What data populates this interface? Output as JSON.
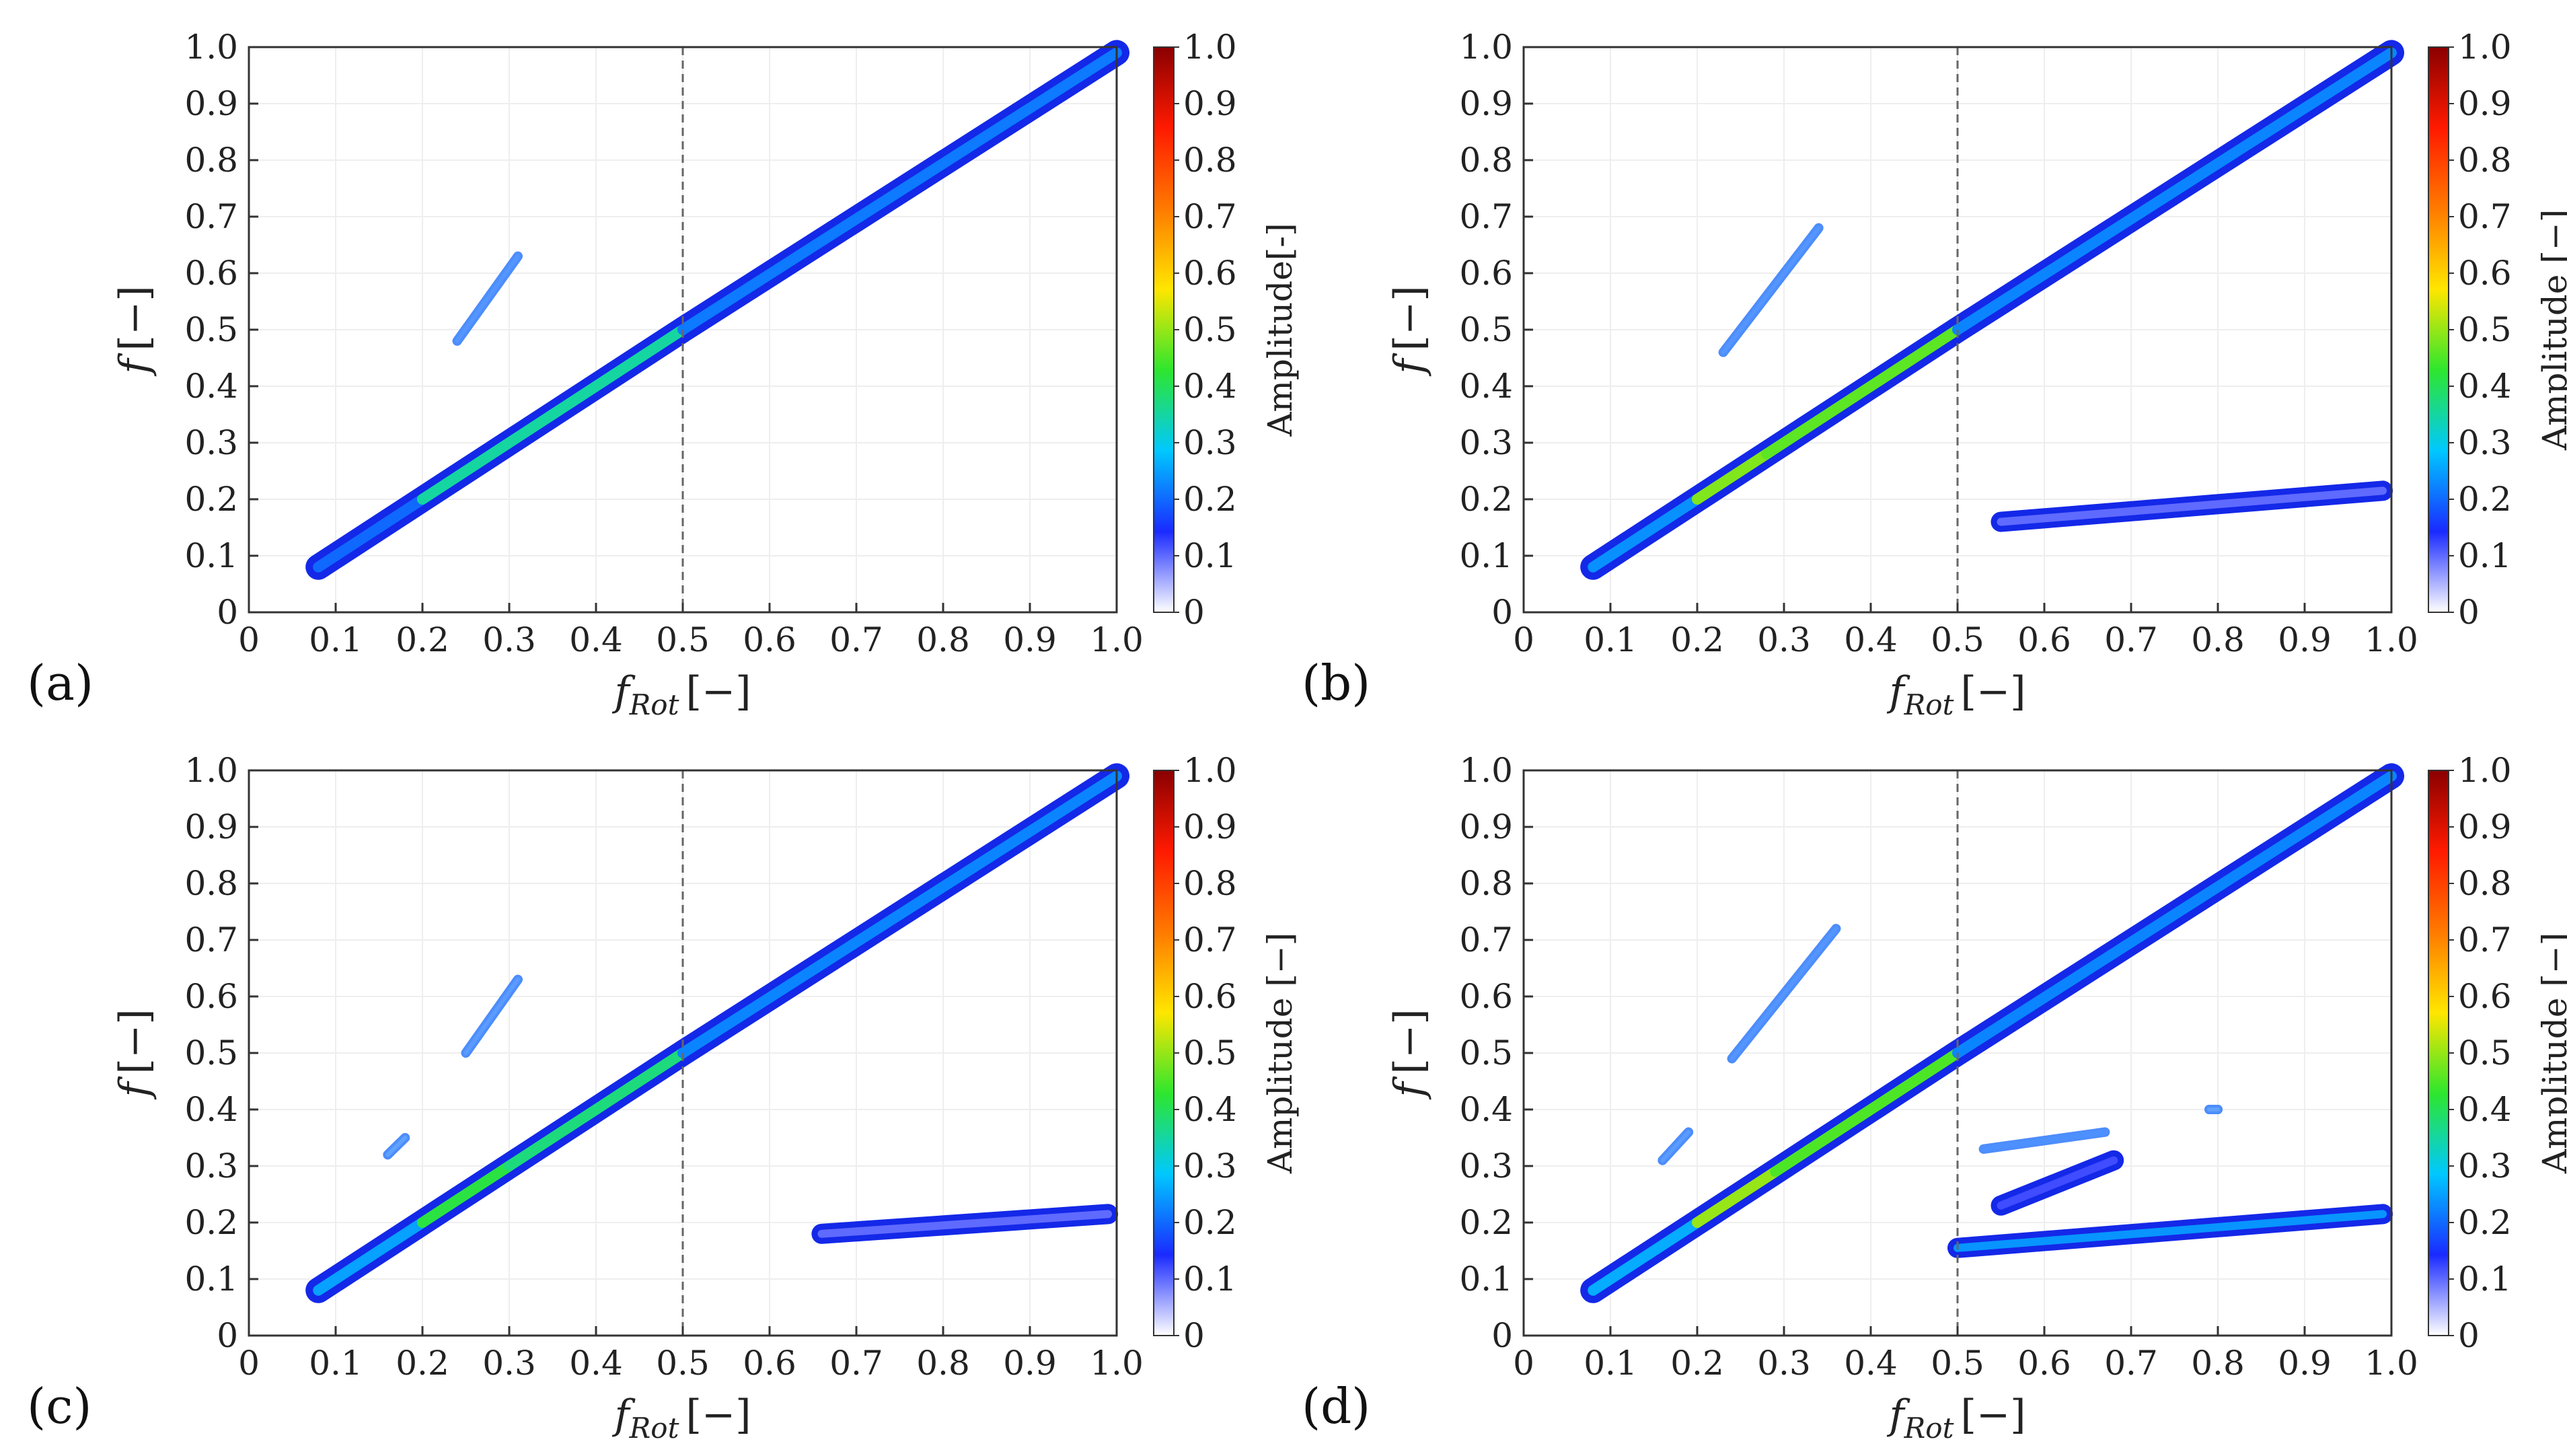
{
  "figure": {
    "colorscale": {
      "stops": [
        "#ffffff",
        "#1a2aff",
        "#00c8ff",
        "#2ee62e",
        "#ffe600",
        "#ff7a00",
        "#ff1a00",
        "#8a0000"
      ]
    },
    "vline_color": "#666666"
  },
  "chart_data": [
    {
      "type": "heatmap",
      "panel_label": "(a)",
      "xlabel_main": "f",
      "xlabel_sub": "Rot",
      "xlabel_unit": "[−]",
      "ylabel_main": "f",
      "ylabel_unit": "[−]",
      "xlim": [
        0,
        1.0
      ],
      "ylim": [
        0,
        1.0
      ],
      "xticks": [
        "0",
        "0.1",
        "0.2",
        "0.3",
        "0.4",
        "0.5",
        "0.6",
        "0.7",
        "0.8",
        "0.9",
        "1.0"
      ],
      "yticks": [
        "0",
        "0.1",
        "0.2",
        "0.3",
        "0.4",
        "0.5",
        "0.6",
        "0.7",
        "0.8",
        "0.9",
        "1.0"
      ],
      "vline_x": 0.5,
      "colorbar": {
        "label": "Amplitude[-]",
        "ticks": [
          "0",
          "0.1",
          "0.2",
          "0.3",
          "0.4",
          "0.5",
          "0.6",
          "0.7",
          "0.8",
          "0.9",
          "1.0"
        ],
        "range": [
          0,
          1.0
        ]
      },
      "bands": [
        {
          "name": "1x harmonic",
          "x": [
            0.08,
            0.2,
            0.35,
            0.5,
            1.0
          ],
          "y": [
            0.08,
            0.2,
            0.35,
            0.5,
            0.99
          ],
          "amp": [
            0.12,
            0.28,
            0.42,
            0.28,
            0.15
          ]
        },
        {
          "name": "sidebranch",
          "x": [
            0.24,
            0.31
          ],
          "y": [
            0.48,
            0.63
          ],
          "amp": [
            0.12,
            0.12
          ]
        }
      ]
    },
    {
      "type": "heatmap",
      "panel_label": "(b)",
      "xlabel_main": "f",
      "xlabel_sub": "Rot",
      "xlabel_unit": "[−]",
      "ylabel_main": "f",
      "ylabel_unit": "[−]",
      "xlim": [
        0,
        1.0
      ],
      "ylim": [
        0,
        1.0
      ],
      "xticks": [
        "0",
        "0.1",
        "0.2",
        "0.3",
        "0.4",
        "0.5",
        "0.6",
        "0.7",
        "0.8",
        "0.9",
        "1.0"
      ],
      "yticks": [
        "0",
        "0.1",
        "0.2",
        "0.3",
        "0.4",
        "0.5",
        "0.6",
        "0.7",
        "0.8",
        "0.9",
        "1.0"
      ],
      "vline_x": 0.5,
      "colorbar": {
        "label": "Amplitude [−]",
        "ticks": [
          "0",
          "0.1",
          "0.2",
          "0.3",
          "0.4",
          "0.5",
          "0.6",
          "0.7",
          "0.8",
          "0.9",
          "1.0"
        ],
        "range": [
          0,
          1.0
        ]
      },
      "bands": [
        {
          "name": "1x harmonic",
          "x": [
            0.08,
            0.2,
            0.28,
            0.5,
            1.0
          ],
          "y": [
            0.08,
            0.2,
            0.28,
            0.5,
            0.99
          ],
          "amp": [
            0.12,
            0.35,
            0.62,
            0.3,
            0.15
          ]
        },
        {
          "name": "sidebranch",
          "x": [
            0.23,
            0.34
          ],
          "y": [
            0.46,
            0.68
          ],
          "amp": [
            0.12,
            0.12
          ]
        },
        {
          "name": "low branch",
          "x": [
            0.55,
            0.99
          ],
          "y": [
            0.16,
            0.215
          ],
          "amp": [
            0.1,
            0.1
          ]
        }
      ]
    },
    {
      "type": "heatmap",
      "panel_label": "(c)",
      "xlabel_main": "f",
      "xlabel_sub": "Rot",
      "xlabel_unit": "[−]",
      "ylabel_main": "f",
      "ylabel_unit": "[−]",
      "xlim": [
        0,
        1.0
      ],
      "ylim": [
        0,
        1.0
      ],
      "xticks": [
        "0",
        "0.1",
        "0.2",
        "0.3",
        "0.4",
        "0.5",
        "0.6",
        "0.7",
        "0.8",
        "0.9",
        "1.0"
      ],
      "yticks": [
        "0",
        "0.1",
        "0.2",
        "0.3",
        "0.4",
        "0.5",
        "0.6",
        "0.7",
        "0.8",
        "0.9",
        "1.0"
      ],
      "vline_x": 0.5,
      "colorbar": {
        "label": "Amplitude [−]",
        "ticks": [
          "0",
          "0.1",
          "0.2",
          "0.3",
          "0.4",
          "0.5",
          "0.6",
          "0.7",
          "0.8",
          "0.9",
          "1.0"
        ],
        "range": [
          0,
          1.0
        ]
      },
      "bands": [
        {
          "name": "1x harmonic",
          "x": [
            0.08,
            0.2,
            0.3,
            0.5,
            1.0
          ],
          "y": [
            0.08,
            0.2,
            0.3,
            0.5,
            0.99
          ],
          "amp": [
            0.12,
            0.38,
            0.45,
            0.3,
            0.15
          ]
        },
        {
          "name": "sidebranch",
          "x": [
            0.25,
            0.31
          ],
          "y": [
            0.5,
            0.63
          ],
          "amp": [
            0.1,
            0.1
          ]
        },
        {
          "name": "small streak",
          "x": [
            0.16,
            0.18
          ],
          "y": [
            0.32,
            0.35
          ],
          "amp": [
            0.08,
            0.08
          ]
        },
        {
          "name": "low branch",
          "x": [
            0.66,
            0.99
          ],
          "y": [
            0.18,
            0.215
          ],
          "amp": [
            0.1,
            0.1
          ]
        }
      ]
    },
    {
      "type": "heatmap",
      "panel_label": "(d)",
      "xlabel_main": "f",
      "xlabel_sub": "Rot",
      "xlabel_unit": "[−]",
      "ylabel_main": "f",
      "ylabel_unit": "[−]",
      "xlim": [
        0,
        1.0
      ],
      "ylim": [
        0,
        1.0
      ],
      "xticks": [
        "0",
        "0.1",
        "0.2",
        "0.3",
        "0.4",
        "0.5",
        "0.6",
        "0.7",
        "0.8",
        "0.9",
        "1.0"
      ],
      "yticks": [
        "0",
        "0.1",
        "0.2",
        "0.3",
        "0.4",
        "0.5",
        "0.6",
        "0.7",
        "0.8",
        "0.9",
        "1.0"
      ],
      "vline_x": 0.5,
      "colorbar": {
        "label": "Amplitude [−]",
        "ticks": [
          "0",
          "0.1",
          "0.2",
          "0.3",
          "0.4",
          "0.5",
          "0.6",
          "0.7",
          "0.8",
          "0.9",
          "1.0"
        ],
        "range": [
          0,
          1.0
        ]
      },
      "bands": [
        {
          "name": "1x harmonic",
          "x": [
            0.08,
            0.2,
            0.29,
            0.5,
            1.0
          ],
          "y": [
            0.08,
            0.2,
            0.29,
            0.5,
            0.99
          ],
          "amp": [
            0.12,
            0.4,
            0.6,
            0.3,
            0.15
          ]
        },
        {
          "name": "sidebranch",
          "x": [
            0.24,
            0.36
          ],
          "y": [
            0.49,
            0.72
          ],
          "amp": [
            0.12,
            0.12
          ]
        },
        {
          "name": "small streak",
          "x": [
            0.16,
            0.19
          ],
          "y": [
            0.31,
            0.36
          ],
          "amp": [
            0.1,
            0.1
          ]
        },
        {
          "name": "mid branch upper",
          "x": [
            0.53,
            0.67
          ],
          "y": [
            0.33,
            0.36
          ],
          "amp": [
            0.15,
            0.15
          ]
        },
        {
          "name": "mid branch lower",
          "x": [
            0.55,
            0.68
          ],
          "y": [
            0.23,
            0.31
          ],
          "amp": [
            0.12,
            0.12
          ]
        },
        {
          "name": "dot",
          "x": [
            0.79,
            0.8
          ],
          "y": [
            0.4,
            0.4
          ],
          "amp": [
            0.08,
            0.08
          ]
        },
        {
          "name": "low branch",
          "x": [
            0.5,
            0.99
          ],
          "y": [
            0.155,
            0.215
          ],
          "amp": [
            0.28,
            0.2
          ]
        }
      ]
    }
  ]
}
